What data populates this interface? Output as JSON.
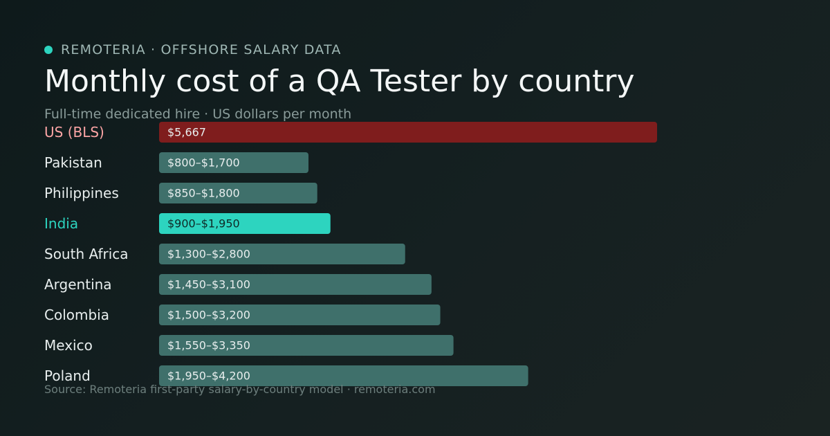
{
  "brand": {
    "label": "REMOTERIA · OFFSHORE SALARY DATA"
  },
  "header": {
    "title": "Monthly cost of a QA Tester by country",
    "subtitle": "Full-time dedicated hire · US dollars per month"
  },
  "footer": {
    "source": "Source: Remoteria first-party salary-by-country model · remoteria.com"
  },
  "colors": {
    "brand_dot": "#2dd4bf",
    "benchmark_bar": "#7f1d1d",
    "benchmark_label": "#fca5a5",
    "highlight_bar": "#2dd4bf",
    "highlight_label": "#2dd4bf",
    "default_bar": "#3f706b",
    "default_label": "#e8eeee"
  },
  "chart_data": {
    "type": "bar",
    "orientation": "horizontal",
    "unit": "USD per month",
    "xlim": [
      0,
      5667
    ],
    "grid": false,
    "categories": [
      "US (BLS)",
      "Pakistan",
      "Philippines",
      "India",
      "South Africa",
      "Argentina",
      "Colombia",
      "Mexico",
      "Poland"
    ],
    "low": [
      5667,
      800,
      850,
      900,
      1300,
      1450,
      1500,
      1550,
      1950
    ],
    "high": [
      5667,
      1700,
      1800,
      1950,
      2800,
      3100,
      3200,
      3350,
      4200
    ],
    "value_labels": [
      "$5,667",
      "$800–$1,700",
      "$850–$1,800",
      "$900–$1,950",
      "$1,300–$2,800",
      "$1,450–$3,100",
      "$1,500–$3,200",
      "$1,550–$3,350",
      "$1,950–$4,200"
    ],
    "benchmark": "US (BLS)",
    "highlight": "India"
  }
}
